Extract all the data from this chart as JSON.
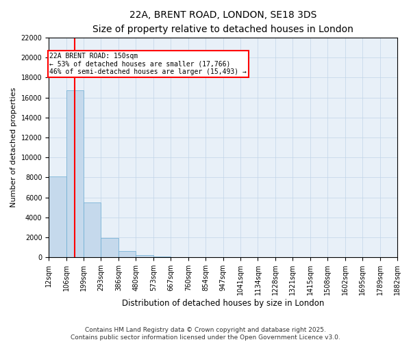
{
  "title1": "22A, BRENT ROAD, LONDON, SE18 3DS",
  "title2": "Size of property relative to detached houses in London",
  "xlabel": "Distribution of detached houses by size in London",
  "ylabel": "Number of detached properties",
  "bar_color": "#c5d9ec",
  "bar_edge_color": "#6aabd2",
  "bin_labels": [
    "12sqm",
    "106sqm",
    "199sqm",
    "293sqm",
    "386sqm",
    "480sqm",
    "573sqm",
    "667sqm",
    "760sqm",
    "854sqm",
    "947sqm",
    "1041sqm",
    "1134sqm",
    "1228sqm",
    "1321sqm",
    "1415sqm",
    "1508sqm",
    "1602sqm",
    "1695sqm",
    "1789sqm",
    "1882sqm"
  ],
  "counts": [
    8100,
    16700,
    5500,
    1900,
    650,
    200,
    100,
    40,
    20,
    10,
    5,
    3,
    2,
    1,
    1,
    0,
    0,
    0,
    0,
    0
  ],
  "property_size_bar_idx": 1,
  "annotation_text": "22A BRENT ROAD: 150sqm\n← 53% of detached houses are smaller (17,766)\n46% of semi-detached houses are larger (15,493) →",
  "annotation_box_color": "white",
  "annotation_box_edge_color": "red",
  "vline_color": "red",
  "vline_x": 1.5,
  "ylim": [
    0,
    22000
  ],
  "yticks": [
    0,
    2000,
    4000,
    6000,
    8000,
    10000,
    12000,
    14000,
    16000,
    18000,
    20000,
    22000
  ],
  "grid_color": "#c0d4e8",
  "background_color": "#e8f0f8",
  "footer_text": "Contains HM Land Registry data © Crown copyright and database right 2025.\nContains public sector information licensed under the Open Government Licence v3.0.",
  "title1_fontsize": 10,
  "title2_fontsize": 9,
  "xlabel_fontsize": 8.5,
  "ylabel_fontsize": 8,
  "tick_fontsize": 7,
  "footer_fontsize": 6.5,
  "annotation_fontsize": 7
}
